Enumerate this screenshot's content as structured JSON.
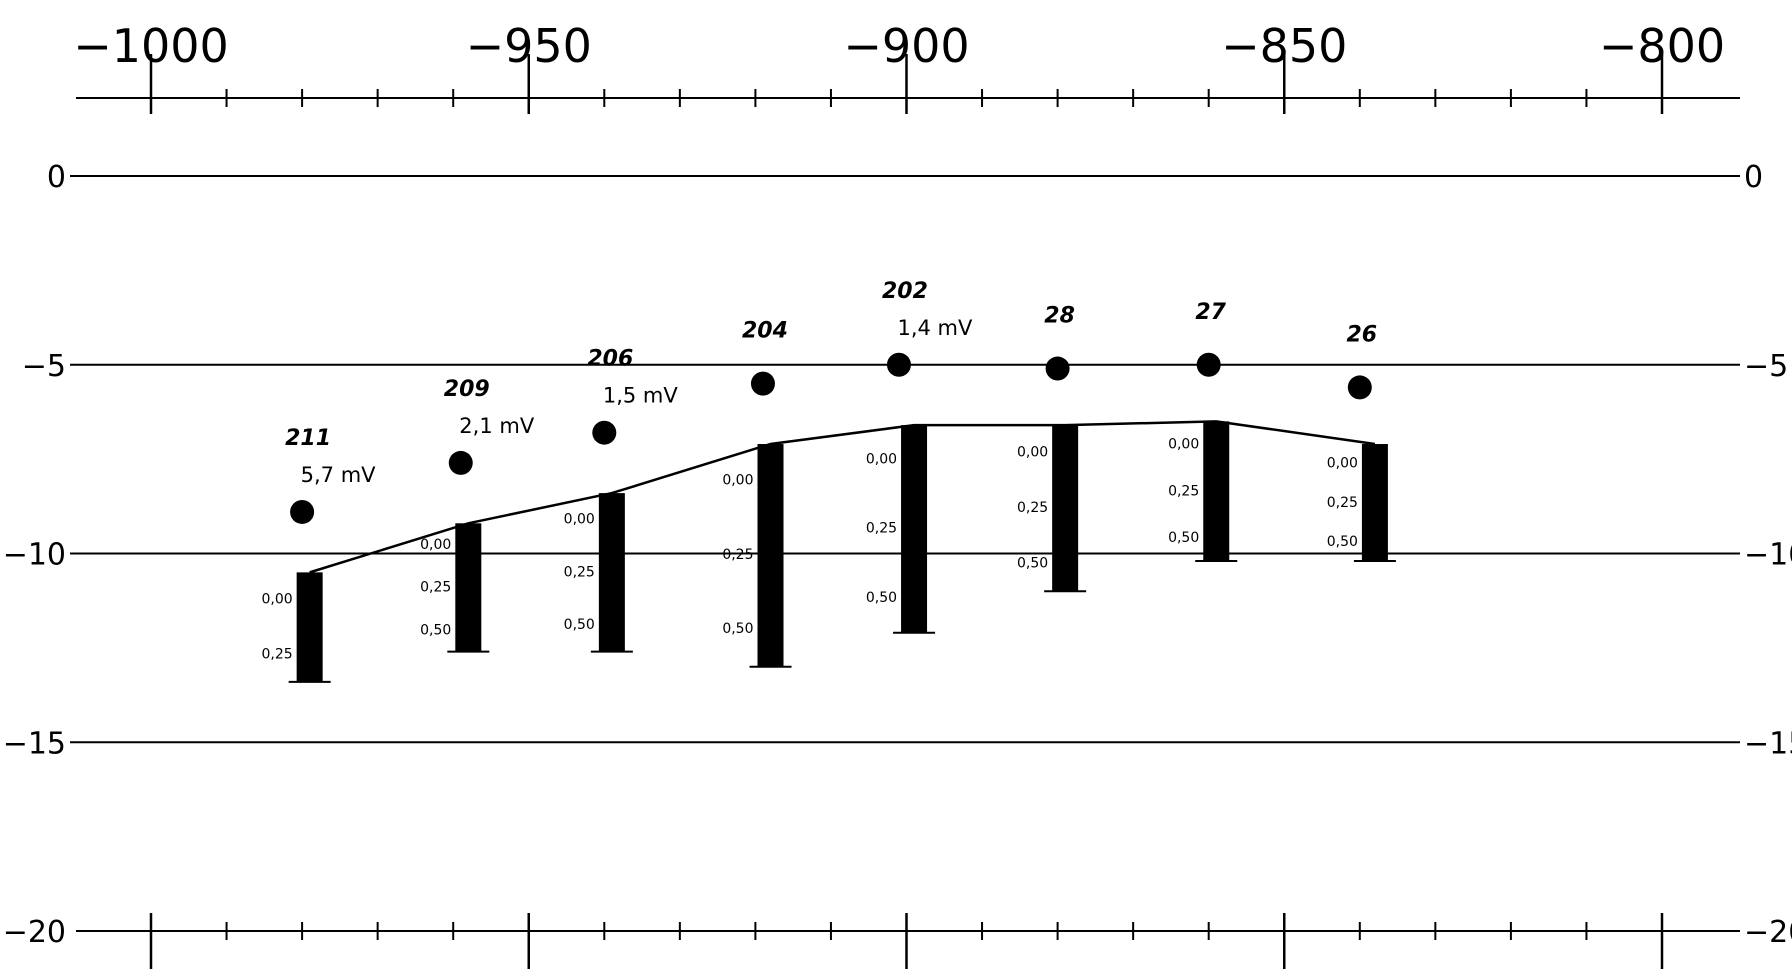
{
  "chart_data": {
    "type": "scatter",
    "title": "",
    "xlabel": "",
    "ylabel": "",
    "x_ticks": [
      "−1000",
      "−950",
      "−900",
      "−850",
      "−800"
    ],
    "x_tick_values": [
      -1000,
      -950,
      -900,
      -850,
      -800
    ],
    "y_ticks": [
      "0",
      "−5",
      "−10",
      "−15",
      "−20"
    ],
    "y_tick_values": [
      0,
      -5,
      -10,
      -15,
      -20
    ],
    "xlim": [
      -1010,
      -790
    ],
    "ylim": [
      -20,
      0
    ],
    "grid": "horizontal lines at every 5",
    "points": [
      {
        "name": "211",
        "x": -980,
        "y": -8.9,
        "mv": "5,7 mV"
      },
      {
        "name": "209",
        "x": -959,
        "y": -7.6,
        "mv": "2,1 mV"
      },
      {
        "name": "206",
        "x": -940,
        "y": -6.8,
        "mv": "1,5 mV"
      },
      {
        "name": "204",
        "x": -919,
        "y": -5.5,
        "mv": ""
      },
      {
        "name": "202",
        "x": -901,
        "y": -5.0,
        "mv": "1,4 mV"
      },
      {
        "name": "28",
        "x": -880,
        "y": -5.1,
        "mv": ""
      },
      {
        "name": "27",
        "x": -860,
        "y": -5.0,
        "mv": ""
      },
      {
        "name": "26",
        "x": -840,
        "y": -5.6,
        "mv": ""
      }
    ],
    "profile_line": {
      "x": [
        -979,
        -958,
        -939,
        -918,
        -899,
        -879,
        -859,
        -838
      ],
      "y": [
        -10.5,
        -9.2,
        -8.4,
        -7.1,
        -6.6,
        -6.6,
        -6.5,
        -7.1
      ]
    },
    "bars": [
      {
        "x": -979,
        "top": -10.5,
        "bottom": -13.4,
        "scale": [
          "0,00",
          "0,25"
        ]
      },
      {
        "x": -958,
        "top": -9.2,
        "bottom": -12.6,
        "scale": [
          "0,00",
          "0,25",
          "0,50"
        ]
      },
      {
        "x": -939,
        "top": -8.4,
        "bottom": -12.6,
        "scale": [
          "0,00",
          "0,25",
          "0,50"
        ]
      },
      {
        "x": -918,
        "top": -7.1,
        "bottom": -13.0,
        "scale": [
          "0,00",
          "0,25",
          "0,50"
        ]
      },
      {
        "x": -899,
        "top": -6.6,
        "bottom": -12.1,
        "scale": [
          "0,00",
          "0,25",
          "0,50"
        ]
      },
      {
        "x": -879,
        "top": -6.6,
        "bottom": -11.0,
        "scale": [
          "0,00",
          "0,25",
          "0,50"
        ]
      },
      {
        "x": -859,
        "top": -6.5,
        "bottom": -10.2,
        "scale": [
          "0,00",
          "0,25",
          "0,50"
        ]
      },
      {
        "x": -838,
        "top": -7.1,
        "bottom": -10.2,
        "scale": [
          "0,00",
          "0,25",
          "0,50"
        ]
      }
    ],
    "bar_scale_step": 0.25
  },
  "colors": {
    "ink": "#000000",
    "background": "#ffffff"
  }
}
